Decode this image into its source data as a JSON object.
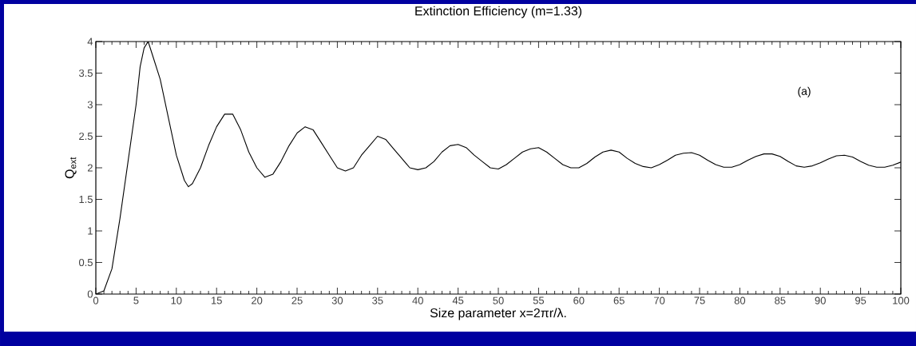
{
  "chart_data": {
    "type": "line",
    "title": "Extinction Efficiency (m=1.33)",
    "xlabel": "Size parameter x=2πr/λ.",
    "ylabel": "Q$_{ext}$",
    "annotations": [
      "(a)"
    ],
    "x": [
      0,
      1,
      2,
      3,
      4,
      5,
      5.5,
      6,
      6.5,
      7,
      8,
      9,
      10,
      11,
      11.5,
      12,
      13,
      14,
      15,
      16,
      17,
      18,
      19,
      20,
      21,
      22,
      23,
      24,
      25,
      26,
      27,
      28,
      29,
      30,
      31,
      32,
      33,
      34,
      35,
      36,
      37,
      38,
      39,
      40,
      41,
      42,
      43,
      44,
      45,
      46,
      47,
      48,
      49,
      50,
      51,
      52,
      53,
      54,
      55,
      56,
      57,
      58,
      59,
      60,
      61,
      62,
      63,
      64,
      65,
      66,
      67,
      68,
      69,
      70,
      71,
      72,
      73,
      74,
      75,
      76,
      77,
      78,
      79,
      80,
      81,
      82,
      83,
      84,
      85,
      86,
      87,
      88,
      89,
      90,
      91,
      92,
      93,
      94,
      95,
      96,
      97,
      98,
      99,
      100
    ],
    "series": [
      {
        "color": "#000000",
        "values": [
          0,
          0.05,
          0.4,
          1.2,
          2.1,
          3.0,
          3.6,
          3.9,
          4.0,
          3.8,
          3.4,
          2.8,
          2.2,
          1.8,
          1.7,
          1.75,
          2.0,
          2.35,
          2.65,
          2.85,
          2.85,
          2.6,
          2.25,
          2.0,
          1.85,
          1.9,
          2.1,
          2.35,
          2.55,
          2.65,
          2.6,
          2.4,
          2.2,
          2.0,
          1.95,
          2.0,
          2.2,
          2.35,
          2.5,
          2.45,
          2.3,
          2.15,
          2.0,
          1.97,
          2.0,
          2.1,
          2.25,
          2.35,
          2.37,
          2.32,
          2.2,
          2.1,
          2.0,
          1.98,
          2.05,
          2.15,
          2.25,
          2.3,
          2.32,
          2.25,
          2.15,
          2.05,
          2.0,
          2.0,
          2.07,
          2.17,
          2.25,
          2.28,
          2.25,
          2.15,
          2.07,
          2.02,
          2.0,
          2.05,
          2.12,
          2.2,
          2.23,
          2.24,
          2.2,
          2.12,
          2.05,
          2.01,
          2.01,
          2.05,
          2.12,
          2.18,
          2.22,
          2.22,
          2.18,
          2.1,
          2.03,
          2.01,
          2.03,
          2.08,
          2.14,
          2.19,
          2.2,
          2.17,
          2.1,
          2.04,
          2.01,
          2.01,
          2.04,
          2.09
        ]
      }
    ],
    "xlim": [
      0,
      100
    ],
    "ylim": [
      0,
      4
    ],
    "xticks": [
      0,
      5,
      10,
      15,
      20,
      25,
      30,
      35,
      40,
      45,
      50,
      55,
      60,
      65,
      70,
      75,
      80,
      85,
      90,
      95,
      100
    ],
    "yticks": [
      0,
      0.5,
      1,
      1.5,
      2,
      2.5,
      3,
      3.5,
      4
    ],
    "grid": false,
    "marker": "none",
    "line_style": "solid"
  }
}
